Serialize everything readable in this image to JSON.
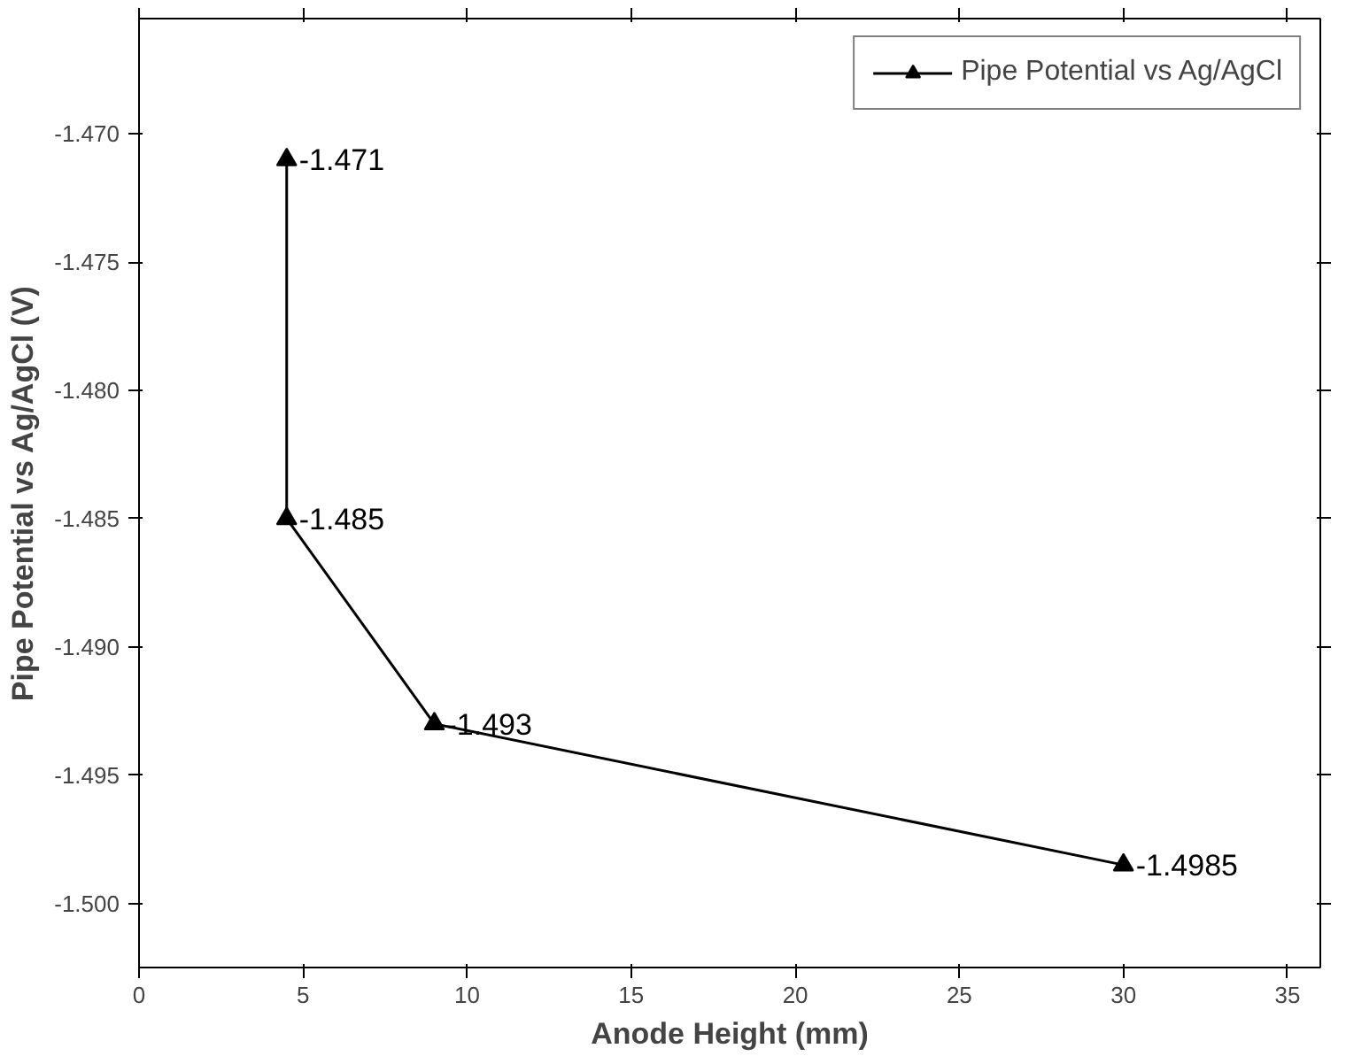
{
  "chart_data": {
    "type": "line",
    "xlabel": "Anode Height (mm)",
    "ylabel": "Pipe Potential vs Ag/AgCl (V)",
    "x": [
      4.5,
      4.5,
      9,
      30
    ],
    "series": [
      {
        "name": "Pipe Potential vs Ag/AgCl",
        "color": "#000000",
        "values": [
          -1.471,
          -1.485,
          -1.493,
          -1.4985
        ]
      }
    ],
    "xlim": [
      0,
      36
    ],
    "ylim": [
      -1.5025,
      -1.4655
    ],
    "xticks": [
      0,
      5,
      10,
      15,
      20,
      25,
      30,
      35
    ],
    "yticks": [
      {
        "value": -1.5,
        "label": "-1.500"
      },
      {
        "value": -1.495,
        "label": "-1.495"
      },
      {
        "value": -1.49,
        "label": "-1.490"
      },
      {
        "value": -1.485,
        "label": "-1.485"
      },
      {
        "value": -1.48,
        "label": "-1.480"
      },
      {
        "value": -1.475,
        "label": "-1.475"
      },
      {
        "value": -1.47,
        "label": "-1.470"
      }
    ],
    "marker": "triangle",
    "line_style": "solid",
    "grid": false,
    "legend": "top right",
    "data_labels": true
  }
}
